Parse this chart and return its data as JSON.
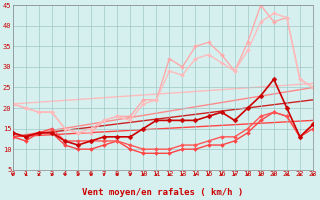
{
  "xlabel": "Vent moyen/en rafales ( km/h )",
  "xlim": [
    0,
    23
  ],
  "ylim": [
    5,
    45
  ],
  "yticks": [
    5,
    10,
    15,
    20,
    25,
    30,
    35,
    40,
    45
  ],
  "xticks": [
    0,
    1,
    2,
    3,
    4,
    5,
    6,
    7,
    8,
    9,
    10,
    11,
    12,
    13,
    14,
    15,
    16,
    17,
    18,
    19,
    20,
    21,
    22,
    23
  ],
  "background_color": "#d6f0f0",
  "grid_color": "#a0c8c8",
  "lines": [
    {
      "x": [
        0,
        1,
        2,
        3,
        4,
        5,
        6,
        7,
        8,
        9,
        10,
        11,
        12,
        13,
        14,
        15,
        16,
        17,
        18,
        19,
        20,
        21,
        22,
        23
      ],
      "y": [
        21,
        20,
        19,
        19,
        15,
        14,
        14,
        17,
        18,
        18,
        22,
        22,
        32,
        30,
        35,
        36,
        33,
        29,
        36,
        45,
        41,
        42,
        27,
        25
      ],
      "color": "#ffaaaa",
      "linewidth": 1.0,
      "marker": "D",
      "markersize": 2.0,
      "zorder": 2
    },
    {
      "x": [
        0,
        1,
        2,
        3,
        4,
        5,
        6,
        7,
        8,
        9,
        10,
        11,
        12,
        13,
        14,
        15,
        16,
        17,
        18,
        19,
        20,
        21,
        22,
        23
      ],
      "y": [
        21,
        20,
        19,
        19,
        15,
        14,
        15,
        17,
        18,
        17,
        21,
        22,
        29,
        28,
        32,
        33,
        31,
        29,
        34,
        41,
        43,
        42,
        27,
        25
      ],
      "color": "#ffbbbb",
      "linewidth": 1.0,
      "marker": "D",
      "markersize": 2.0,
      "zorder": 2
    },
    {
      "x": [
        0,
        1,
        2,
        3,
        4,
        5,
        6,
        7,
        8,
        9,
        10,
        11,
        12,
        13,
        14,
        15,
        16,
        17,
        18,
        19,
        20,
        21,
        22,
        23
      ],
      "y": [
        14,
        13,
        14,
        14,
        12,
        11,
        12,
        13,
        13,
        13,
        15,
        17,
        17,
        17,
        17,
        18,
        19,
        17,
        20,
        23,
        27,
        20,
        13,
        16
      ],
      "color": "#cc0000",
      "linewidth": 1.2,
      "marker": "D",
      "markersize": 2.5,
      "zorder": 4
    },
    {
      "x": [
        0,
        1,
        2,
        3,
        4,
        5,
        6,
        7,
        8,
        9,
        10,
        11,
        12,
        13,
        14,
        15,
        16,
        17,
        18,
        19,
        20,
        21,
        22,
        23
      ],
      "y": [
        13,
        12,
        14,
        14,
        11,
        10,
        10,
        11,
        12,
        10,
        9,
        9,
        9,
        10,
        10,
        11,
        11,
        12,
        14,
        17,
        19,
        18,
        13,
        15
      ],
      "color": "#ff4444",
      "linewidth": 1.0,
      "marker": "D",
      "markersize": 2.0,
      "zorder": 3
    },
    {
      "x": [
        0,
        1,
        2,
        3,
        4,
        5,
        6,
        7,
        8,
        9,
        10,
        11,
        12,
        13,
        14,
        15,
        16,
        17,
        18,
        19,
        20,
        21,
        22,
        23
      ],
      "y": [
        14,
        13,
        14,
        15,
        12,
        12,
        12,
        12,
        12,
        11,
        10,
        10,
        10,
        11,
        11,
        12,
        13,
        13,
        15,
        18,
        19,
        18,
        13,
        16
      ],
      "color": "#ff5555",
      "linewidth": 1.0,
      "marker": "D",
      "markersize": 2.0,
      "zorder": 3
    },
    {
      "x": [
        0,
        23
      ],
      "y": [
        21,
        26
      ],
      "color": "#ffbbbb",
      "linewidth": 1.0,
      "marker": null,
      "markersize": 0,
      "zorder": 1
    },
    {
      "x": [
        0,
        23
      ],
      "y": [
        13,
        25
      ],
      "color": "#ff8888",
      "linewidth": 1.0,
      "marker": null,
      "markersize": 0,
      "zorder": 1
    },
    {
      "x": [
        0,
        23
      ],
      "y": [
        13,
        22
      ],
      "color": "#cc2222",
      "linewidth": 1.0,
      "marker": null,
      "markersize": 0,
      "zorder": 1
    },
    {
      "x": [
        0,
        23
      ],
      "y": [
        13,
        17
      ],
      "color": "#ff4444",
      "linewidth": 1.0,
      "marker": null,
      "markersize": 0,
      "zorder": 1
    }
  ],
  "arrow_color": "#cc0000",
  "tick_label_color": "#cc0000",
  "axis_label_color": "#cc0000",
  "tick_fontsize": 5,
  "xlabel_fontsize": 6.5
}
